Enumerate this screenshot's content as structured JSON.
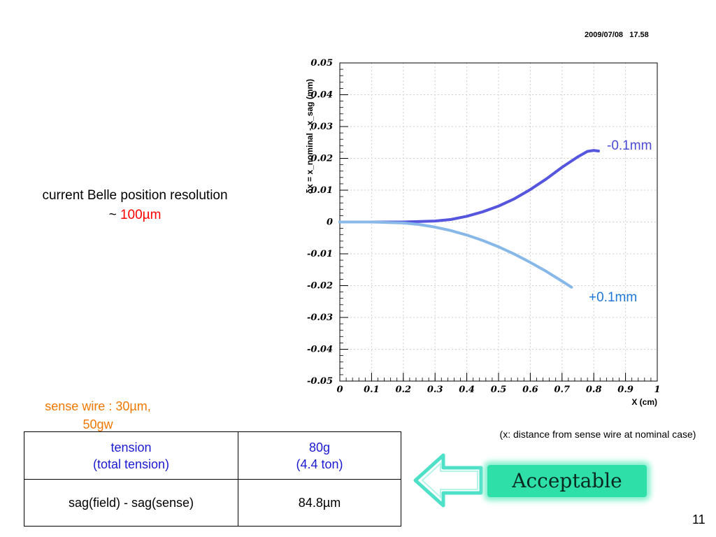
{
  "header": {
    "timestamp": "2009/07/08   17.58"
  },
  "left_note": {
    "line1": "current Belle position resolution",
    "prefix": "~ ",
    "value": "100µm"
  },
  "wire_note": {
    "line1": "sense wire : 30µm,",
    "line2": "50gw"
  },
  "table": {
    "rows": [
      {
        "label_line1": "tension",
        "label_line2": "(total tension)",
        "value_line1": "80g",
        "value_line2": "(4.4 ton)"
      },
      {
        "label": "sag(field) - sag(sense)",
        "value": "84.8µm"
      }
    ]
  },
  "caption": "(x: distance from sense wire at nominal case)",
  "badge": {
    "label": "Acceptable",
    "color": "#2ee0a8",
    "icon": "left-arrow-icon"
  },
  "page_number": "11",
  "chart_data": {
    "type": "line",
    "xlabel": "X (cm)",
    "ylabel": "δx = x_nominal - x_sag (mm)",
    "xlim": [
      0,
      1
    ],
    "ylim": [
      -0.05,
      0.05
    ],
    "x_ticks": [
      "0",
      "0.1",
      "0.2",
      "0.3",
      "0.4",
      "0.5",
      "0.6",
      "0.7",
      "0.8",
      "0.9",
      "1"
    ],
    "y_ticks": [
      "0.05",
      "0.04",
      "0.03",
      "0.02",
      "0.01",
      "0",
      "-0.01",
      "-0.02",
      "-0.03",
      "-0.04",
      "-0.05"
    ],
    "grid": true,
    "series": [
      {
        "name": "-0.1mm",
        "color": "#5555dd",
        "x": [
          0.0,
          0.1,
          0.2,
          0.3,
          0.35,
          0.4,
          0.45,
          0.5,
          0.55,
          0.6,
          0.65,
          0.7,
          0.75,
          0.78,
          0.8,
          0.815
        ],
        "y": [
          0.0,
          0.0,
          0.0,
          0.0003,
          0.0008,
          0.0018,
          0.0032,
          0.005,
          0.0073,
          0.0102,
          0.0135,
          0.0172,
          0.0205,
          0.0222,
          0.0225,
          0.0223
        ]
      },
      {
        "name": "+0.1mm",
        "color": "#88b8e8",
        "x": [
          0.0,
          0.1,
          0.2,
          0.25,
          0.3,
          0.35,
          0.4,
          0.45,
          0.5,
          0.55,
          0.6,
          0.65,
          0.7,
          0.73
        ],
        "y": [
          0.0,
          0.0,
          -0.0003,
          -0.0008,
          -0.0016,
          -0.0027,
          -0.0041,
          -0.0058,
          -0.0078,
          -0.0101,
          -0.0127,
          -0.0155,
          -0.0186,
          -0.0205
        ]
      }
    ]
  }
}
